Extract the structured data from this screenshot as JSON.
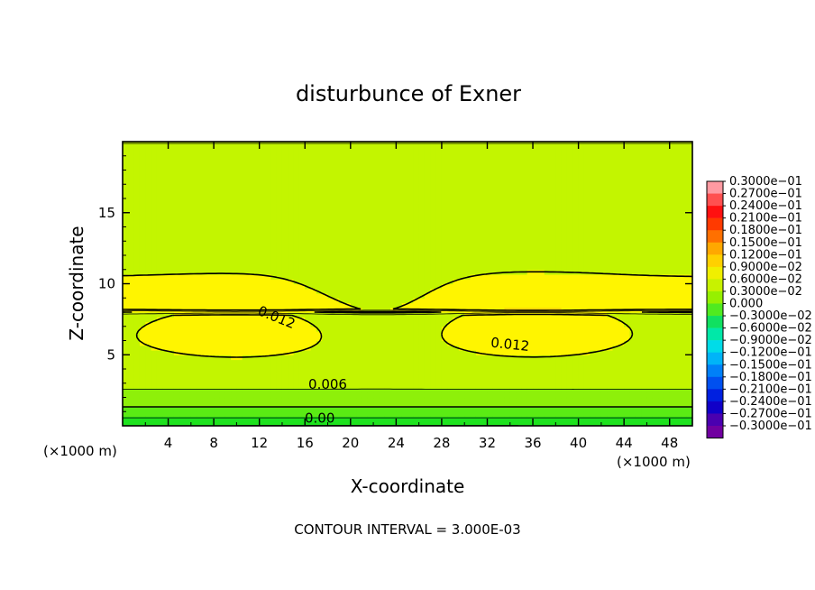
{
  "chart_data": {
    "type": "heatmap",
    "title": "disturbunce of Exner",
    "xlabel": "X-coordinate",
    "ylabel": "Z-coordinate",
    "x_unit": "(×1000 m)",
    "y_unit": "(×1000 m)",
    "xlim": [
      0,
      50
    ],
    "ylim": [
      0,
      20
    ],
    "x_ticks": [
      4,
      8,
      12,
      16,
      20,
      24,
      28,
      32,
      36,
      40,
      44,
      48
    ],
    "y_ticks": [
      5,
      10,
      15
    ],
    "contour_interval_text": "CONTOUR INTERVAL = 3.000E-03",
    "contour_labels": [
      {
        "text": "0.012",
        "x": 13.5,
        "z": 7.6,
        "angle_deg": 22
      },
      {
        "text": "0.012",
        "x": 34,
        "z": 5.7,
        "angle_deg": 6
      },
      {
        "text": "0.006",
        "x": 18,
        "z": 2.9,
        "angle_deg": 0
      },
      {
        "text": "0.00",
        "x": 17.3,
        "z": 0.5,
        "angle_deg": 0
      }
    ],
    "colorbar": {
      "labels": [
        "0.3000e−01",
        "0.2700e−01",
        "0.2400e−01",
        "0.2100e−01",
        "0.1800e−01",
        "0.1500e−01",
        "0.1200e−01",
        "0.9000e−02",
        "0.6000e−02",
        "0.3000e−02",
        "0.000",
        "−0.3000e−02",
        "−0.6000e−02",
        "−0.9000e−02",
        "−0.1200e−01",
        "−0.1500e−01",
        "−0.1800e−01",
        "−0.2100e−01",
        "−0.2400e−01",
        "−0.2700e−01",
        "−0.3000e−01"
      ],
      "colors": [
        "#ff9aa2",
        "#ff5050",
        "#ff1010",
        "#ff3a00",
        "#ff7000",
        "#ffa800",
        "#ffd000",
        "#f0ef00",
        "#c8f200",
        "#96f000",
        "#50ea20",
        "#10e060",
        "#00e8a8",
        "#00dce8",
        "#00b4f8",
        "#0080f8",
        "#0050f0",
        "#0020e0",
        "#1000c8",
        "#4a00b0",
        "#7000a0"
      ]
    },
    "field": {
      "description_levels": [
        0.0,
        0.003,
        0.006,
        0.009,
        0.012,
        0.015
      ],
      "fill_colors": [
        "#1ee21e",
        "#5aeb14",
        "#8ef00a",
        "#c3f500",
        "#fff500",
        "#f8d40a"
      ]
    }
  }
}
